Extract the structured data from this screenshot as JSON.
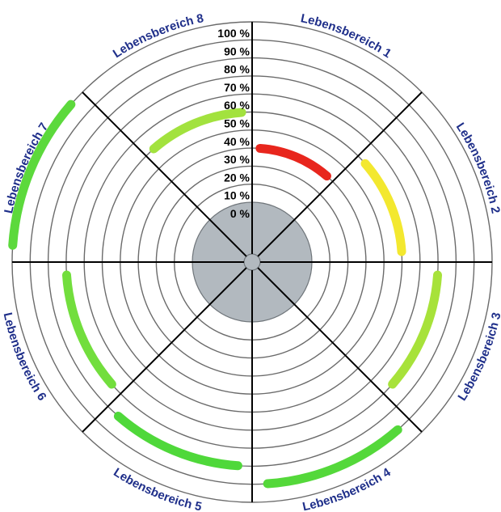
{
  "chart_data": {
    "type": "radial-arc",
    "title": "",
    "scale": {
      "min": 0,
      "max": 100,
      "unit": "%",
      "ticks": [
        0,
        10,
        20,
        30,
        40,
        50,
        60,
        70,
        80,
        90,
        100
      ],
      "tick_labels": [
        "0 %",
        "10 %",
        "20 %",
        "30 %",
        "40 %",
        "50 %",
        "60 %",
        "70 %",
        "80 %",
        "90 %",
        "100 %"
      ]
    },
    "categories": [
      "Lebensbereich 1",
      "Lebensbereich 2",
      "Lebensbereich 3",
      "Lebensbereich 4",
      "Lebensbereich 5",
      "Lebensbereich 6",
      "Lebensbereich 7",
      "Lebensbereich 8"
    ],
    "values": [
      30,
      50,
      70,
      90,
      80,
      70,
      100,
      50
    ],
    "colors": [
      "#e8261d",
      "#f3e82f",
      "#a7e23a",
      "#54d83a",
      "#4fd83a",
      "#72de3d",
      "#5cd93c",
      "#a2e23e"
    ],
    "grid": true
  },
  "palette": {
    "ring_stroke": "#6b6b6b",
    "spoke_stroke": "#000000",
    "hub_fill": "#b2b9bf",
    "hub_stroke": "#6f757a",
    "label_color": "#1f2f8a"
  }
}
